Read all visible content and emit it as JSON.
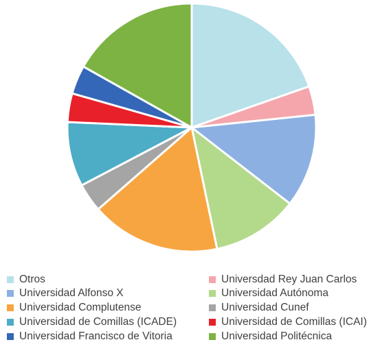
{
  "chart_data": {
    "type": "pie",
    "title": "",
    "slices": [
      {
        "label": "Otros",
        "value": 21,
        "color": "#B8E1EA"
      },
      {
        "label": "Universdad Rey Juan Carlos",
        "value": 4,
        "color": "#F4A6AC"
      },
      {
        "label": "Universidad Alfonso X",
        "value": 13,
        "color": "#8DB0E2"
      },
      {
        "label": "Universidad Autónoma",
        "value": 12,
        "color": "#B3D98A"
      },
      {
        "label": "Universidad Complutense",
        "value": 18,
        "color": "#F7A541"
      },
      {
        "label": "Universidad Cunef",
        "value": 4,
        "color": "#A5A5A5"
      },
      {
        "label": "Universidad de Comillas (ICADE)",
        "value": 9,
        "color": "#4DACC6"
      },
      {
        "label": "Universidad de Comillas (ICAI)",
        "value": 4,
        "color": "#E8202A"
      },
      {
        "label": "Universidad Francisco de Vitoria",
        "value": 4,
        "color": "#3467B7"
      },
      {
        "label": "Universidad Politécnica",
        "value": 18,
        "color": "#7CB342"
      }
    ],
    "legend_position": "bottom"
  }
}
